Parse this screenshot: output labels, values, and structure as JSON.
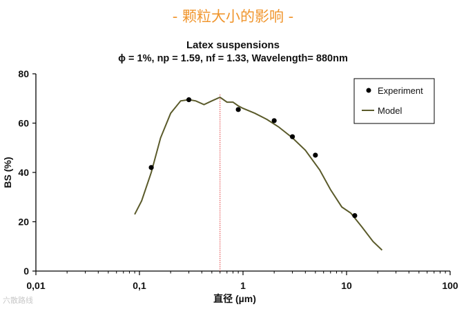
{
  "slide_title": "- 颗粒大小的影响 -",
  "watermark": "六散路线",
  "chart_data": {
    "type": "scatter",
    "title": "Latex suspensions",
    "subtitle": "ϕ = 1%, np = 1.59, nf = 1.33, Wavelength= 880nm",
    "xlabel": "直径 (µm)",
    "ylabel": "BS (%)",
    "xscale": "log",
    "xlim": [
      0.01,
      100
    ],
    "ylim": [
      0,
      80
    ],
    "x_ticks": [
      0.01,
      0.1,
      1,
      10,
      100
    ],
    "x_tick_labels": [
      "0,01",
      "0,1",
      "1",
      "10",
      "100"
    ],
    "y_ticks": [
      0,
      20,
      40,
      60,
      80
    ],
    "y_tick_labels": [
      "0",
      "20",
      "40",
      "60",
      "80"
    ],
    "grid": false,
    "legend_position": "top-right",
    "reference_line_x": 0.6,
    "series": [
      {
        "name": "Experiment",
        "kind": "points",
        "color": "#000000",
        "x": [
          0.13,
          0.3,
          0.9,
          2.0,
          3.0,
          5.0,
          12.0
        ],
        "y": [
          42,
          69.5,
          65.5,
          61,
          54.5,
          47,
          22.5
        ]
      },
      {
        "name": "Model",
        "kind": "line",
        "color": "#5a5a2a",
        "x": [
          0.09,
          0.105,
          0.13,
          0.16,
          0.2,
          0.25,
          0.3,
          0.35,
          0.42,
          0.5,
          0.6,
          0.7,
          0.8,
          0.9,
          1.0,
          1.3,
          1.7,
          2.2,
          3.0,
          4.0,
          5.5,
          7.0,
          9.0,
          11.0,
          14.0,
          18.0,
          22.0
        ],
        "y": [
          23,
          28.5,
          40,
          54,
          64,
          69,
          69.5,
          69,
          67.5,
          69,
          70.5,
          68.5,
          68.5,
          67,
          66,
          64,
          61.5,
          58.5,
          54,
          49,
          41,
          33,
          26,
          23.5,
          18,
          12,
          8.5
        ]
      }
    ]
  }
}
